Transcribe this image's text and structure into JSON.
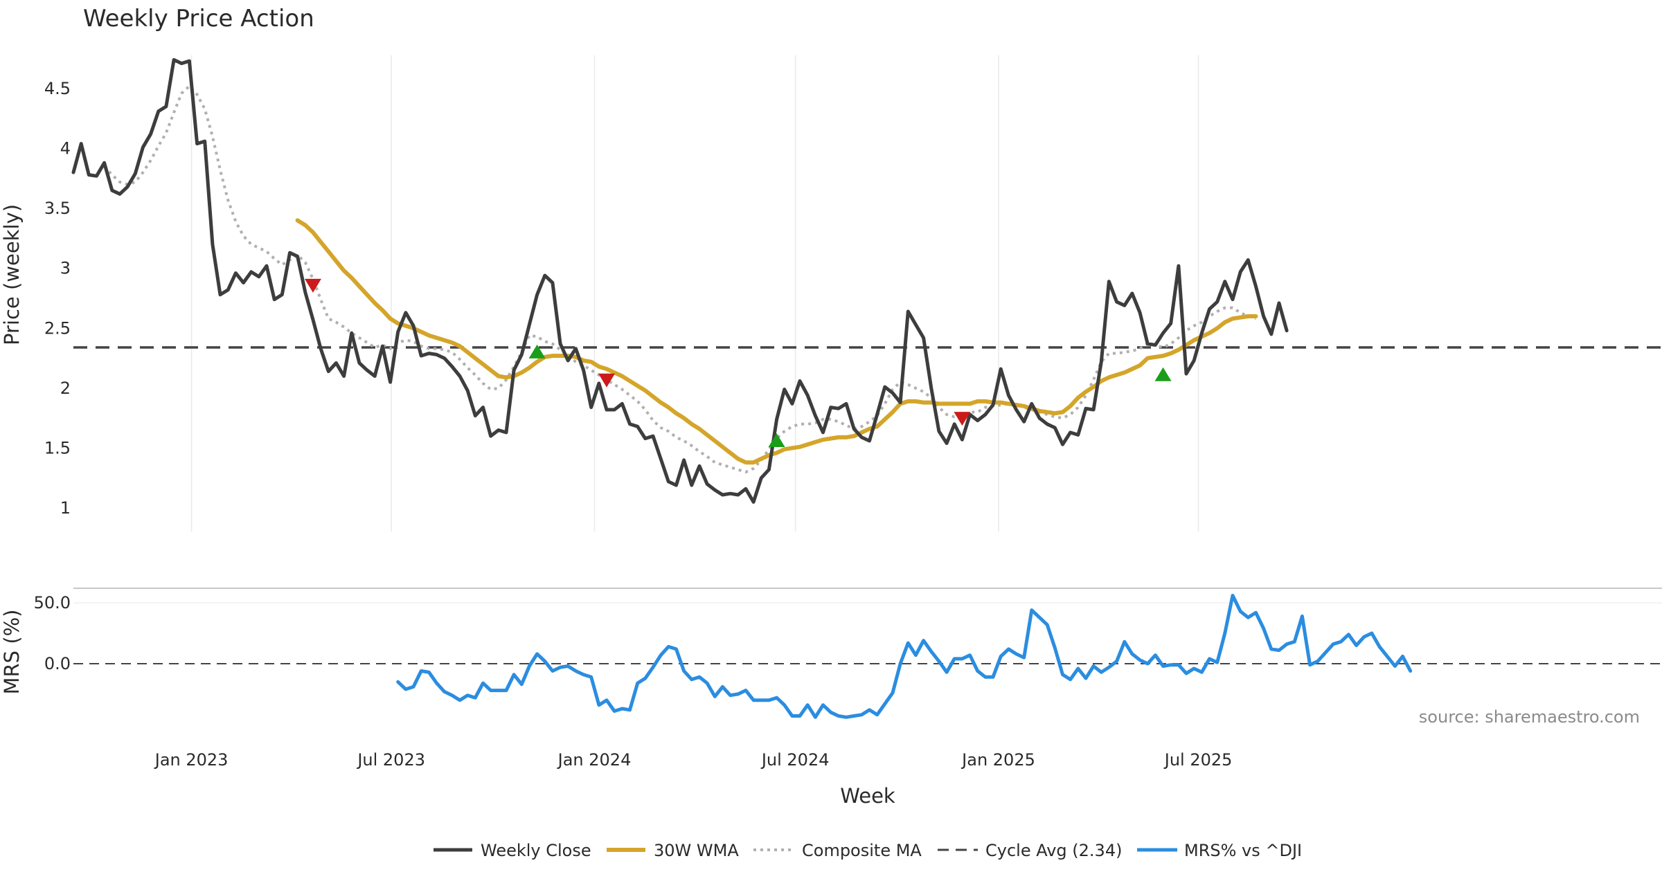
{
  "chart_data": {
    "type": "line",
    "title": "Weekly Price Action",
    "xlabel": "Week",
    "ylabel_price": "Price (weekly)",
    "ylabel_mrs": "MRS (%)",
    "x_ticks": [
      "Jan 2023",
      "Jul 2023",
      "Jan 2024",
      "Jul 2024",
      "Jan 2025",
      "Jul 2025"
    ],
    "price_ylim": [
      0.85,
      4.95
    ],
    "price_yticks": [
      "1",
      "1.5",
      "2",
      "2.5",
      "3",
      "3.5",
      "4",
      "4.5"
    ],
    "mrs_ylim": [
      -70,
      62
    ],
    "mrs_yticks": [
      "0.0",
      "50.0"
    ],
    "cycle_avg": 2.34,
    "source": "source: sharemaestro.com",
    "legend": [
      "Weekly Close",
      "30W WMA",
      "Composite MA",
      "Cycle Avg (2.34)",
      "MRS% vs ^DJI"
    ],
    "colors": {
      "close": "#3d3d3d",
      "wma": "#d4a52a",
      "composite": "#b0b0b0",
      "cycle": "#444444",
      "mrs": "#2b8de0",
      "buy": "#1a9e1a",
      "sell": "#cc1a1a"
    },
    "weeks_start": "2022-09-16",
    "series": {
      "close": [
        3.8,
        4.04,
        3.78,
        3.77,
        3.88,
        3.65,
        3.62,
        3.68,
        3.79,
        4.01,
        4.12,
        4.31,
        4.35,
        4.74,
        4.71,
        4.73,
        4.04,
        4.06,
        3.2,
        2.78,
        2.82,
        2.96,
        2.88,
        2.97,
        2.93,
        3.02,
        2.74,
        2.78,
        3.13,
        3.1,
        2.8,
        2.57,
        2.33,
        2.14,
        2.21,
        2.1,
        2.46,
        2.21,
        2.15,
        2.1,
        2.35,
        2.05,
        2.47,
        2.63,
        2.52,
        2.27,
        2.29,
        2.28,
        2.25,
        2.18,
        2.1,
        1.98,
        1.77,
        1.84,
        1.6,
        1.65,
        1.63,
        2.15,
        2.28,
        2.53,
        2.78,
        2.94,
        2.88,
        2.37,
        2.23,
        2.33,
        2.15,
        1.84,
        2.04,
        1.82,
        1.82,
        1.87,
        1.7,
        1.68,
        1.58,
        1.6,
        1.41,
        1.22,
        1.19,
        1.4,
        1.19,
        1.35,
        1.2,
        1.15,
        1.11,
        1.12,
        1.11,
        1.16,
        1.05,
        1.25,
        1.32,
        1.74,
        1.99,
        1.87,
        2.06,
        1.94,
        1.77,
        1.63,
        1.84,
        1.83,
        1.87,
        1.66,
        1.59,
        1.56,
        1.78,
        2.01,
        1.96,
        1.88,
        2.64,
        2.53,
        2.42,
        2.0,
        1.64,
        1.54,
        1.7,
        1.57,
        1.78,
        1.73,
        1.78,
        1.86,
        2.16,
        1.94,
        1.82,
        1.72,
        1.87,
        1.75,
        1.7,
        1.67,
        1.53,
        1.63,
        1.61,
        1.83,
        1.82,
        2.22,
        2.89,
        2.72,
        2.69,
        2.79,
        2.63,
        2.37,
        2.36,
        2.46,
        2.54,
        3.02,
        2.12,
        2.23,
        2.46,
        2.66,
        2.72,
        2.89,
        2.74,
        2.97,
        3.07,
        2.85,
        2.6,
        2.45,
        2.71,
        2.48
      ],
      "wma": [
        null,
        null,
        null,
        null,
        null,
        null,
        null,
        null,
        null,
        null,
        null,
        null,
        null,
        null,
        null,
        null,
        null,
        null,
        null,
        null,
        null,
        null,
        null,
        null,
        null,
        null,
        null,
        null,
        null,
        3.4,
        3.36,
        3.3,
        3.22,
        3.14,
        3.06,
        2.98,
        2.92,
        2.85,
        2.78,
        2.71,
        2.65,
        2.58,
        2.54,
        2.52,
        2.5,
        2.47,
        2.44,
        2.42,
        2.4,
        2.38,
        2.35,
        2.3,
        2.25,
        2.2,
        2.15,
        2.1,
        2.09,
        2.1,
        2.13,
        2.17,
        2.22,
        2.26,
        2.27,
        2.27,
        2.27,
        2.26,
        2.23,
        2.22,
        2.18,
        2.16,
        2.13,
        2.1,
        2.06,
        2.02,
        1.98,
        1.93,
        1.88,
        1.84,
        1.79,
        1.75,
        1.7,
        1.66,
        1.61,
        1.56,
        1.51,
        1.46,
        1.41,
        1.38,
        1.38,
        1.41,
        1.44,
        1.46,
        1.49,
        1.5,
        1.51,
        1.53,
        1.55,
        1.57,
        1.58,
        1.59,
        1.59,
        1.6,
        1.63,
        1.66,
        1.68,
        1.74,
        1.8,
        1.87,
        1.89,
        1.89,
        1.88,
        1.88,
        1.87,
        1.87,
        1.87,
        1.87,
        1.87,
        1.89,
        1.89,
        1.88,
        1.88,
        1.87,
        1.86,
        1.85,
        1.83,
        1.81,
        1.8,
        1.79,
        1.8,
        1.85,
        1.92,
        1.97,
        2.01,
        2.06,
        2.09,
        2.11,
        2.13,
        2.16,
        2.19,
        2.25,
        2.26,
        2.27,
        2.29,
        2.32,
        2.36,
        2.4,
        2.43,
        2.46,
        2.5,
        2.55,
        2.58,
        2.59,
        2.6,
        2.6
      ],
      "composite": [
        null,
        null,
        null,
        null,
        3.85,
        3.78,
        3.72,
        3.7,
        3.72,
        3.8,
        3.9,
        4.02,
        4.13,
        4.3,
        4.46,
        4.52,
        4.45,
        4.33,
        4.1,
        3.82,
        3.57,
        3.39,
        3.27,
        3.2,
        3.17,
        3.14,
        3.08,
        3.03,
        3.07,
        3.11,
        3.05,
        2.91,
        2.74,
        2.58,
        2.55,
        2.51,
        2.46,
        2.42,
        2.38,
        2.34,
        2.36,
        2.33,
        2.38,
        2.4,
        2.39,
        2.35,
        2.33,
        2.33,
        2.32,
        2.3,
        2.24,
        2.17,
        2.11,
        2.04,
        1.99,
        2.0,
        2.07,
        2.18,
        2.3,
        2.44,
        2.43,
        2.39,
        2.37,
        2.32,
        2.27,
        2.22,
        2.19,
        2.15,
        2.11,
        2.07,
        2.03,
        1.99,
        1.94,
        1.89,
        1.82,
        1.73,
        1.67,
        1.64,
        1.59,
        1.56,
        1.52,
        1.47,
        1.43,
        1.38,
        1.36,
        1.34,
        1.32,
        1.3,
        1.33,
        1.4,
        1.49,
        1.58,
        1.64,
        1.68,
        1.7,
        1.7,
        1.71,
        1.74,
        1.74,
        1.72,
        1.69,
        1.66,
        1.68,
        1.72,
        1.77,
        1.87,
        1.99,
        2.05,
        2.03,
        2.0,
        1.97,
        1.92,
        1.84,
        1.78,
        1.76,
        1.77,
        1.8,
        1.8,
        1.84,
        1.85,
        1.86,
        1.87,
        1.86,
        1.84,
        1.82,
        1.8,
        1.78,
        1.76,
        1.75,
        1.78,
        1.84,
        1.94,
        2.07,
        2.22,
        2.29,
        2.29,
        2.3,
        2.31,
        2.33,
        2.37,
        2.36,
        2.34,
        2.37,
        2.42,
        2.48,
        2.52,
        2.55,
        2.6,
        2.64,
        2.67,
        2.67,
        2.63,
        2.6,
        2.58
      ],
      "mrs": [
        null,
        null,
        null,
        null,
        null,
        null,
        null,
        null,
        null,
        null,
        null,
        null,
        null,
        null,
        null,
        null,
        null,
        null,
        null,
        null,
        null,
        null,
        null,
        null,
        null,
        null,
        null,
        null,
        null,
        null,
        null,
        null,
        null,
        null,
        null,
        null,
        null,
        null,
        null,
        null,
        null,
        null,
        -15,
        -21,
        -19,
        -6,
        -7,
        -16,
        -23,
        -26,
        -30,
        -26,
        -28,
        -16,
        -22,
        -22,
        -22,
        -9,
        -17,
        -2,
        8,
        2,
        -6,
        -3,
        -2,
        -6,
        -9,
        -11,
        -34,
        -30,
        -39,
        -37,
        -38,
        -16,
        -12,
        -3,
        7,
        14,
        12,
        -6,
        -13,
        -11,
        -16,
        -27,
        -19,
        -26,
        -25,
        -22,
        -30,
        -30,
        -30,
        -28,
        -34,
        -43,
        -43,
        -34,
        -44,
        -34,
        -40,
        -43,
        -44,
        -43,
        -42,
        -38,
        -42,
        -33,
        -24,
        0,
        17,
        7,
        19,
        10,
        2,
        -7,
        4,
        4,
        7,
        -6,
        -11,
        -11,
        6,
        12,
        8,
        5,
        44,
        38,
        32,
        13,
        -9,
        -13,
        -4,
        -12,
        -2,
        -7,
        -3,
        2,
        18,
        8,
        3,
        0,
        7,
        -2,
        -1,
        -1,
        -8,
        -4,
        -7,
        4,
        1,
        25,
        56,
        43,
        38,
        42,
        29,
        12,
        11,
        16,
        18,
        39,
        -1,
        2,
        9,
        16,
        18,
        24,
        15,
        22,
        25,
        14,
        6,
        -2,
        6,
        -6
      ],
      "buy_signals": [
        {
          "i": 60,
          "v": 2.3
        },
        {
          "i": 91,
          "v": 1.56
        },
        {
          "i": 141,
          "v": 2.11
        }
      ],
      "sell_signals": [
        {
          "i": 31,
          "v": 2.86
        },
        {
          "i": 69,
          "v": 2.07
        },
        {
          "i": 115,
          "v": 1.75
        }
      ]
    }
  }
}
